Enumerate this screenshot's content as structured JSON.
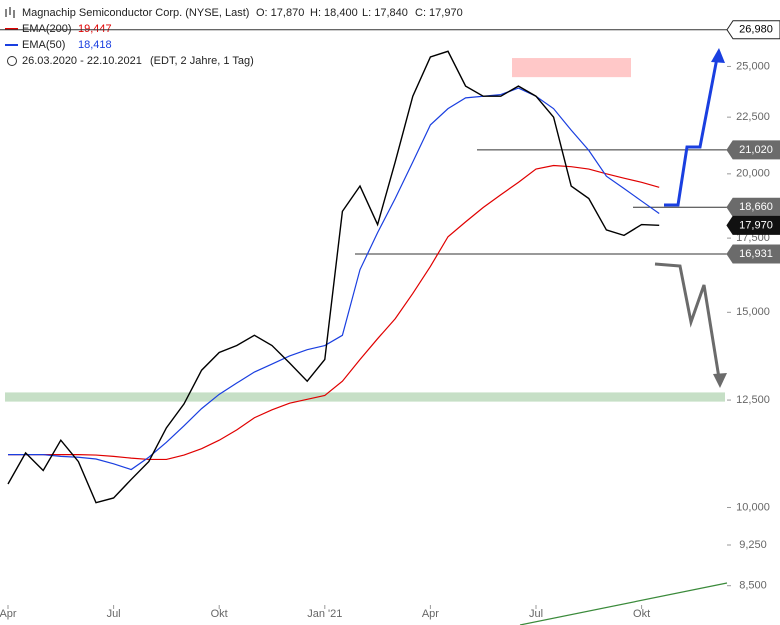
{
  "header": {
    "title": "Magnachip Semiconductor Corp. (NYSE, Last)",
    "open": "O: 17,870",
    "high": "H: 18,400",
    "low": "L: 17,840",
    "close": "C: 17,970",
    "range": "26.03.2020 - 22.10.2021",
    "info": "(EDT, 2 Jahre, 1 Tag)"
  },
  "chart_data": {
    "type": "line",
    "log_scale": true,
    "categories": [
      "Apr",
      null,
      null,
      null,
      null,
      null,
      "Jul",
      null,
      null,
      null,
      null,
      null,
      "Okt",
      null,
      null,
      null,
      null,
      null,
      "Jan '21",
      null,
      null,
      null,
      null,
      null,
      "Apr",
      null,
      null,
      null,
      null,
      null,
      "Jul",
      null,
      null,
      null,
      null,
      null,
      "Okt",
      null
    ],
    "series": [
      {
        "name": "EMA(200)",
        "last_label": "19,447",
        "color": "#e00000",
        "values": [
          11160,
          11160,
          11160,
          11160,
          11160,
          11150,
          11120,
          11080,
          11050,
          11050,
          11150,
          11300,
          11500,
          11750,
          12050,
          12250,
          12420,
          12520,
          12620,
          13000,
          13600,
          14200,
          14800,
          15600,
          16500,
          17550,
          18100,
          18650,
          19150,
          19650,
          20200,
          20350,
          20300,
          20200,
          20000,
          19820,
          19650,
          19447
        ]
      },
      {
        "name": "EMA(50)",
        "last_label": "18,418",
        "color": "#1a3fe0",
        "values": [
          11160,
          11160,
          11160,
          11120,
          11100,
          11060,
          10950,
          10820,
          11100,
          11450,
          11850,
          12280,
          12650,
          12950,
          13250,
          13470,
          13700,
          13880,
          14000,
          14300,
          16390,
          17700,
          19000,
          20500,
          22140,
          22900,
          23420,
          23500,
          23580,
          23900,
          23500,
          22900,
          21900,
          21000,
          19900,
          19400,
          18900,
          18418
        ]
      },
      {
        "color": "#000000",
        "values": [
          10500,
          11200,
          10800,
          11500,
          11000,
          10100,
          10200,
          10600,
          11000,
          11800,
          12400,
          13300,
          13800,
          14000,
          14300,
          14000,
          13500,
          13000,
          13600,
          18500,
          19500,
          18000,
          20500,
          23500,
          25500,
          25800,
          24000,
          23500,
          23500,
          24000,
          23500,
          22500,
          19500,
          19000,
          17800,
          17600,
          18000,
          17970
        ]
      }
    ],
    "ylim": [
      8200,
      28700
    ],
    "yticks": [
      {
        "value": 8500,
        "label": "8,500"
      },
      {
        "value": 9250,
        "label": "9,250"
      },
      {
        "value": 10000,
        "label": "10,000"
      },
      {
        "value": 12500,
        "label": "12,500"
      },
      {
        "value": 15000,
        "label": "15,000"
      },
      {
        "value": 17500,
        "label": "17,500"
      },
      {
        "value": 20000,
        "label": "20,000"
      },
      {
        "value": 22500,
        "label": "22,500"
      },
      {
        "value": 25000,
        "label": "25,000"
      }
    ],
    "levels": [
      {
        "value": 26980,
        "label": "26,980",
        "color": "#ffffff"
      },
      {
        "value": 21020,
        "label": "21,020",
        "color": "#6b6b6b"
      },
      {
        "value": 18660,
        "label": "18,660",
        "color": "#6b6b6b"
      },
      {
        "value": 17970,
        "label": "17,970",
        "color": "#111111"
      },
      {
        "value": 16931,
        "label": "16,931",
        "color": "#6b6b6b"
      }
    ],
    "zones": [
      {
        "range": [
          12460,
          12700
        ],
        "color": "#c6dfc6"
      },
      {
        "range": [
          24450,
          25440
        ],
        "color": "#ffc8c8"
      }
    ]
  }
}
